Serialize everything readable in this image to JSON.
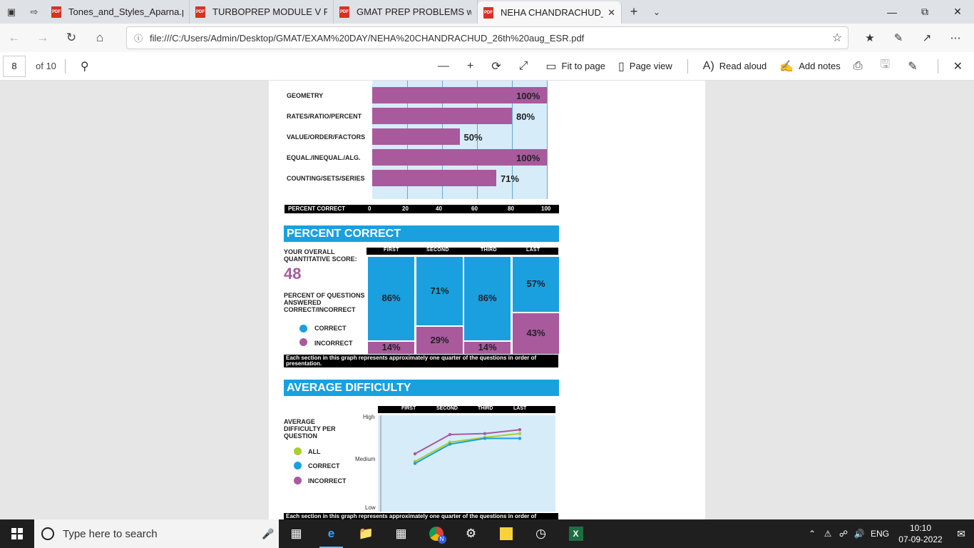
{
  "browser": {
    "tabs": [
      {
        "title": "Tones_and_Styles_Aparna.pc",
        "active": false
      },
      {
        "title": "TURBOPREP MODULE V FO",
        "active": false
      },
      {
        "title": "GMAT PREP PROBLEMS with",
        "active": false
      },
      {
        "title": "NEHA CHANDRACHUD_",
        "active": true
      }
    ],
    "pdf_badge": "PDF",
    "url": "file:///C:/Users/Admin/Desktop/GMAT/EXAM%20DAY/NEHA%20CHANDRACHUD_26th%20aug_ESR.pdf"
  },
  "pdf_toolbar": {
    "page_number": "8",
    "page_count": "of 10",
    "fit_to_page": "Fit to page",
    "page_view": "Page view",
    "read_aloud": "Read aloud",
    "add_notes": "Add notes"
  },
  "colors": {
    "blue": "#1aa0de",
    "purple": "#a85a9d",
    "green": "#a8cf2e"
  },
  "chart_data": [
    {
      "type": "bar",
      "orientation": "horizontal",
      "categories": [
        "GEOMETRY",
        "RATES/RATIO/PERCENT",
        "VALUE/ORDER/FACTORS",
        "EQUAL./INEQUAL./ALG.",
        "COUNTING/SETS/SERIES"
      ],
      "values": [
        100,
        80,
        50,
        100,
        71
      ],
      "value_labels": [
        "100%",
        "80%",
        "50%",
        "100%",
        "71%"
      ],
      "xlabel": "PERCENT CORRECT",
      "ticks": [
        "0",
        "20",
        "40",
        "60",
        "80",
        "100"
      ],
      "xlim": [
        0,
        100
      ]
    },
    {
      "type": "bar",
      "stacked": true,
      "title": "PERCENT CORRECT",
      "categories": [
        "FIRST",
        "SECOND",
        "THIRD",
        "LAST"
      ],
      "series": [
        {
          "name": "CORRECT",
          "values": [
            86,
            71,
            86,
            57
          ],
          "labels": [
            "86%",
            "71%",
            "86%",
            "57%"
          ]
        },
        {
          "name": "INCORRECT",
          "values": [
            14,
            29,
            14,
            43
          ],
          "labels": [
            "14%",
            "29%",
            "14%",
            "43%"
          ]
        }
      ]
    },
    {
      "type": "line",
      "title": "AVERAGE DIFFICULTY",
      "categories": [
        "FIRST",
        "SECOND",
        "THIRD",
        "LAST"
      ],
      "y_levels": [
        "High",
        "Medium",
        "Low"
      ],
      "ylim": [
        0,
        1
      ],
      "series": [
        {
          "name": "ALL",
          "values": [
            0.52,
            0.72,
            0.77,
            0.81
          ]
        },
        {
          "name": "CORRECT",
          "values": [
            0.5,
            0.7,
            0.76,
            0.76
          ]
        },
        {
          "name": "INCORRECT",
          "values": [
            0.6,
            0.8,
            0.81,
            0.85
          ]
        }
      ]
    }
  ],
  "report": {
    "section_percent": "PERCENT CORRECT",
    "overall_label": "YOUR OVERALL QUANTITATIVE SCORE:",
    "score": "48",
    "percent_questions_label": "PERCENT OF QUESTIONS ANSWERED CORRECT/INCORRECT",
    "legend_correct": "CORRECT",
    "legend_incorrect": "INCORRECT",
    "note": "Each section in this graph represents approximately one quarter of the questions in order of presentation.",
    "section_difficulty": "AVERAGE DIFFICULTY",
    "difficulty_label": "AVERAGE DIFFICULTY PER QUESTION",
    "legend_all": "ALL",
    "note2": "Each section in this graph represents approximately one quarter of the questions in order of"
  },
  "taskbar": {
    "search_placeholder": "Type here to search",
    "language": "ENG",
    "time": "10:10",
    "date": "07-09-2022",
    "chrome_badge": "N"
  }
}
